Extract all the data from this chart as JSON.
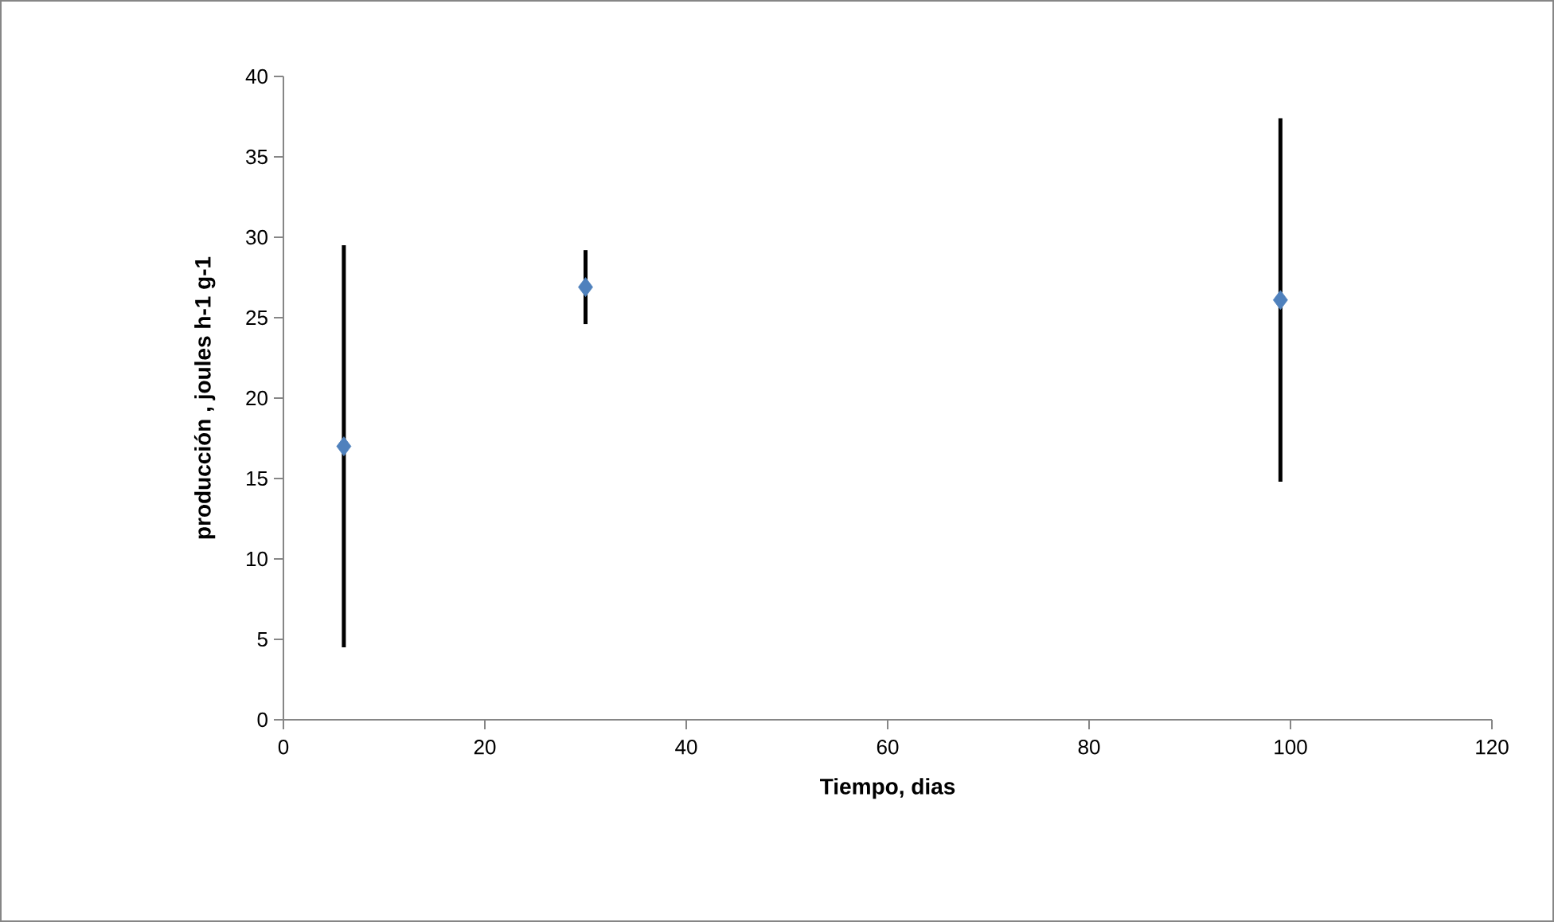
{
  "chart_data": {
    "type": "scatter",
    "xlabel": "Tiempo, dias",
    "ylabel": "producción , joules h-1 g-1",
    "x": [
      6,
      30,
      99
    ],
    "values": [
      17,
      26.9,
      26.1
    ],
    "errors": [
      12.5,
      2.3,
      11.3
    ],
    "color": "#4f81bd",
    "marker": "diamond",
    "xlim": [
      0,
      120
    ],
    "ylim": [
      0,
      40
    ],
    "xticks": [
      0,
      20,
      40,
      60,
      80,
      100,
      120
    ],
    "yticks": [
      0,
      5,
      10,
      15,
      20,
      25,
      30,
      35,
      40
    ]
  }
}
